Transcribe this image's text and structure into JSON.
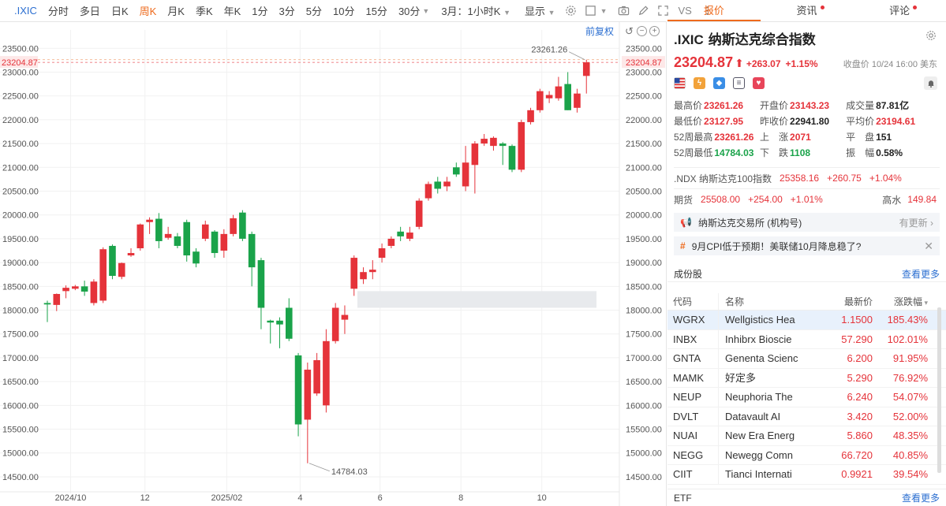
{
  "toolbar": {
    "symbol": ".IXIC",
    "periods": [
      "分时",
      "多日",
      "日K",
      "周K",
      "月K",
      "季K",
      "年K",
      "1分",
      "3分",
      "5分",
      "10分",
      "15分",
      "30分"
    ],
    "active_period": "周K",
    "range_select": "3月：1小时K",
    "display_label": "显示",
    "vs_label": "VS"
  },
  "chart_tools": {
    "adjust_label": "前复权"
  },
  "chart_data": {
    "type": "candlestick",
    "yticks": [
      23500,
      23000,
      22500,
      22000,
      21500,
      21000,
      20500,
      20000,
      19500,
      19000,
      18500,
      18000,
      17500,
      17000,
      16500,
      16000,
      15500,
      15000,
      14500
    ],
    "ytick_labels": [
      "23500.00",
      "23000.00",
      "22500.00",
      "22000.00",
      "21500.00",
      "21000.00",
      "20500.00",
      "20000.00",
      "19500.00",
      "19000.00",
      "18500.00",
      "18000.00",
      "17500.00",
      "17000.00",
      "16500.00",
      "16000.00",
      "15500.00",
      "15000.00",
      "14500.00"
    ],
    "ylim": [
      14350,
      23720
    ],
    "xlabels": [
      {
        "label": "2024/10",
        "index": 2.5
      },
      {
        "label": "12",
        "index": 10.5
      },
      {
        "label": "2025/02",
        "index": 19.3
      },
      {
        "label": "4",
        "index": 27.2
      },
      {
        "label": "6",
        "index": 35.8
      },
      {
        "label": "8",
        "index": 44.5
      },
      {
        "label": "10",
        "index": 53.2
      }
    ],
    "last_price_label": "23204.87",
    "last_price": 23204.87,
    "max_label": "23261.26",
    "max_value": 23261.26,
    "min_label": "14784.03",
    "min_value": 14784.03,
    "grid": true,
    "candles": [
      [
        18150,
        18200,
        17750,
        18120
      ],
      [
        18110,
        18350,
        17980,
        18340
      ],
      [
        18400,
        18520,
        18250,
        18470
      ],
      [
        18450,
        18530,
        18420,
        18500
      ],
      [
        18500,
        18620,
        18300,
        18390
      ],
      [
        18150,
        18650,
        18100,
        18600
      ],
      [
        18200,
        19320,
        18150,
        19280
      ],
      [
        19350,
        19380,
        18650,
        18720
      ],
      [
        18700,
        19000,
        18650,
        18990
      ],
      [
        19150,
        19300,
        19120,
        19200
      ],
      [
        19300,
        19820,
        19250,
        19800
      ],
      [
        19850,
        19950,
        19600,
        19900
      ],
      [
        19920,
        20040,
        19300,
        19450
      ],
      [
        19520,
        19750,
        19480,
        19600
      ],
      [
        19550,
        19620,
        19300,
        19350
      ],
      [
        19850,
        19900,
        19020,
        19150
      ],
      [
        19230,
        19300,
        18900,
        18980
      ],
      [
        19500,
        19880,
        19450,
        19800
      ],
      [
        19650,
        19680,
        19100,
        19200
      ],
      [
        19250,
        19700,
        19100,
        19600
      ],
      [
        19600,
        20000,
        19550,
        19930
      ],
      [
        20050,
        20100,
        19450,
        19500
      ],
      [
        19600,
        19650,
        18500,
        18900
      ],
      [
        19050,
        19100,
        17600,
        18050
      ],
      [
        17780,
        17800,
        17300,
        17740
      ],
      [
        17780,
        17850,
        17200,
        17700
      ],
      [
        18050,
        18250,
        17350,
        17400
      ],
      [
        17050,
        17100,
        15350,
        15600
      ],
      [
        15700,
        16900,
        14784.03,
        16750
      ],
      [
        16250,
        17100,
        16200,
        16950
      ],
      [
        16000,
        17600,
        15850,
        17350
      ],
      [
        17350,
        18150,
        17300,
        18050
      ],
      [
        17800,
        18100,
        17500,
        17900
      ],
      [
        18450,
        19150,
        18300,
        19100
      ],
      [
        18650,
        18900,
        18550,
        18800
      ],
      [
        18800,
        19050,
        18650,
        18850
      ],
      [
        19100,
        19400,
        19000,
        19300
      ],
      [
        19350,
        19550,
        19300,
        19500
      ],
      [
        19650,
        19750,
        19450,
        19550
      ],
      [
        19500,
        19750,
        19450,
        19630
      ],
      [
        19750,
        20350,
        19700,
        20300
      ],
      [
        20350,
        20700,
        20300,
        20650
      ],
      [
        20700,
        20800,
        20450,
        20550
      ],
      [
        20600,
        20800,
        20500,
        20700
      ],
      [
        21000,
        21100,
        20800,
        20850
      ],
      [
        20600,
        21450,
        20500,
        21100
      ],
      [
        21050,
        21550,
        20450,
        21500
      ],
      [
        21500,
        21700,
        21450,
        21600
      ],
      [
        21450,
        21650,
        21350,
        21620
      ],
      [
        21500,
        21530,
        21050,
        21450
      ],
      [
        21450,
        21480,
        20900,
        20950
      ],
      [
        20950,
        22000,
        20900,
        21950
      ],
      [
        21950,
        22250,
        21900,
        22200
      ],
      [
        22200,
        22650,
        22150,
        22600
      ],
      [
        22450,
        22600,
        22350,
        22520
      ],
      [
        22450,
        22900,
        22400,
        22700
      ],
      [
        22750,
        23000,
        22200,
        22200
      ],
      [
        22250,
        22650,
        22150,
        22550
      ],
      [
        22920,
        23261.26,
        22550,
        23204.87
      ]
    ],
    "highlight_band": {
      "from": 18050,
      "to": 18400
    }
  },
  "panel": {
    "tabs": [
      {
        "label": "报价",
        "dot": false
      },
      {
        "label": "资讯",
        "dot": true
      },
      {
        "label": "评论",
        "dot": true
      }
    ],
    "active_tab": "报价",
    "code": ".IXIC",
    "name": "纳斯达克综合指数",
    "price": "23204.87",
    "change": "+263.07",
    "change_pct": "+1.15%",
    "close_time": "收盘价 10/24 16:00 美东",
    "stats": [
      [
        {
          "label": "最高价",
          "value": "23261.26",
          "color": "red"
        },
        {
          "label": "开盘价",
          "value": "23143.23",
          "color": "red"
        },
        {
          "label": "成交量",
          "value": "87.81亿",
          "color": "dark"
        }
      ],
      [
        {
          "label": "最低价",
          "value": "23127.95",
          "color": "red"
        },
        {
          "label": "昨收价",
          "value": "22941.80",
          "color": "dark"
        },
        {
          "label": "平均价",
          "value": "23194.61",
          "color": "red"
        }
      ],
      [
        {
          "label": "52周最高",
          "value": "23261.26",
          "color": "red"
        },
        {
          "label": "上　涨",
          "value": "2071",
          "color": "red"
        },
        {
          "label": "平　盘",
          "value": "151",
          "color": "dark"
        }
      ],
      [
        {
          "label": "52周最低",
          "value": "14784.03",
          "color": "green"
        },
        {
          "label": "下　跌",
          "value": "1108",
          "color": "green"
        },
        {
          "label": "振　幅",
          "value": "0.58%",
          "color": "dark"
        }
      ]
    ],
    "ndx": {
      "label": ".NDX 纳斯达克100指数",
      "price": "25358.16",
      "change": "+260.75",
      "pct": "+1.04%"
    },
    "futures": {
      "label": "期货",
      "price": "25508.00",
      "change": "+254.00",
      "pct": "+1.01%",
      "premium_label": "高水",
      "premium": "149.84"
    },
    "exchange_notice": {
      "text": "纳斯达克交易所 (机构号)",
      "right": "有更新"
    },
    "news_notice": {
      "text": "9月CPI低于预期！美联储10月降息稳了?"
    },
    "constituents": {
      "title": "成份股",
      "more": "查看更多",
      "headers": {
        "code": "代码",
        "name": "名称",
        "price": "最新价",
        "pct": "涨跌幅"
      },
      "rows": [
        {
          "code": "WGRX",
          "name": "Wellgistics Hea",
          "price": "1.1500",
          "pct": "185.43%"
        },
        {
          "code": "INBX",
          "name": "Inhibrx Bioscie",
          "price": "57.290",
          "pct": "102.01%"
        },
        {
          "code": "GNTA",
          "name": "Genenta Scienc",
          "price": "6.200",
          "pct": "91.95%"
        },
        {
          "code": "MAMK",
          "name": "好定多",
          "price": "5.290",
          "pct": "76.92%"
        },
        {
          "code": "NEUP",
          "name": "Neuphoria The",
          "price": "6.240",
          "pct": "54.07%"
        },
        {
          "code": "DVLT",
          "name": "Datavault AI",
          "price": "3.420",
          "pct": "52.00%"
        },
        {
          "code": "NUAI",
          "name": "New Era Energ",
          "price": "5.860",
          "pct": "48.35%"
        },
        {
          "code": "NEGG",
          "name": "Newegg Comn",
          "price": "66.720",
          "pct": "40.85%"
        },
        {
          "code": "CIIT",
          "name": "Tianci Internati",
          "price": "0.9921",
          "pct": "39.54%"
        }
      ]
    },
    "etf": {
      "title": "ETF",
      "more": "查看更多"
    }
  },
  "colors": {
    "up": "#e5333a",
    "down": "#1aa34a",
    "accent": "#ee6a1c",
    "link": "#2c6fd1"
  }
}
